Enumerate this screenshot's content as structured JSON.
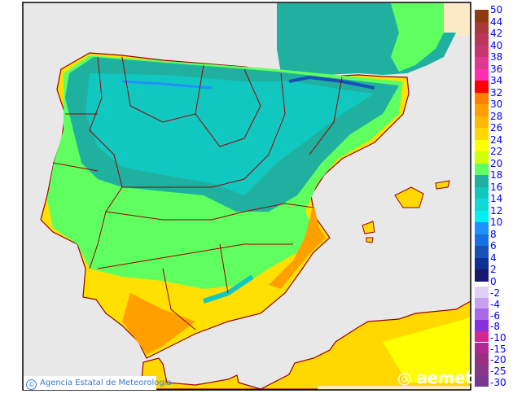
{
  "map": {
    "sea_color": "#e8e8e8",
    "border_color": "#990000",
    "credit": "Agencia Estatal de Meteorología",
    "credit_symbol": "©",
    "logo": "aemet"
  },
  "legend": {
    "label_color": "#0000ff",
    "positive": {
      "labels": [
        "50",
        "44",
        "42",
        "40",
        "38",
        "36",
        "34",
        "32",
        "30",
        "28",
        "26",
        "24",
        "22",
        "20",
        "18",
        "16",
        "14",
        "12",
        "10",
        "8",
        "6",
        "4",
        "2",
        "0"
      ],
      "colors": [
        "#8e3a12",
        "#a83a3a",
        "#b8365a",
        "#c83670",
        "#e03890",
        "#ff30b0",
        "#ff0000",
        "#ff8000",
        "#ffa000",
        "#ffb800",
        "#ffd800",
        "#ffff00",
        "#d0ff00",
        "#60ff60",
        "#20b0a0",
        "#10c8c0",
        "#10d8d8",
        "#00f0f0",
        "#2090ff",
        "#1870e0",
        "#1850b8",
        "#103090",
        "#181870"
      ]
    },
    "negative": {
      "labels": [
        "-2",
        "-4",
        "-6",
        "-8",
        "-10",
        "-15",
        "-20",
        "-25",
        "-30"
      ],
      "colors": [
        "#e0d0f8",
        "#c8a0f0",
        "#a868e8",
        "#8830e0",
        "#d02890",
        "#b02890",
        "#983080",
        "#883888",
        "#783890"
      ]
    }
  }
}
